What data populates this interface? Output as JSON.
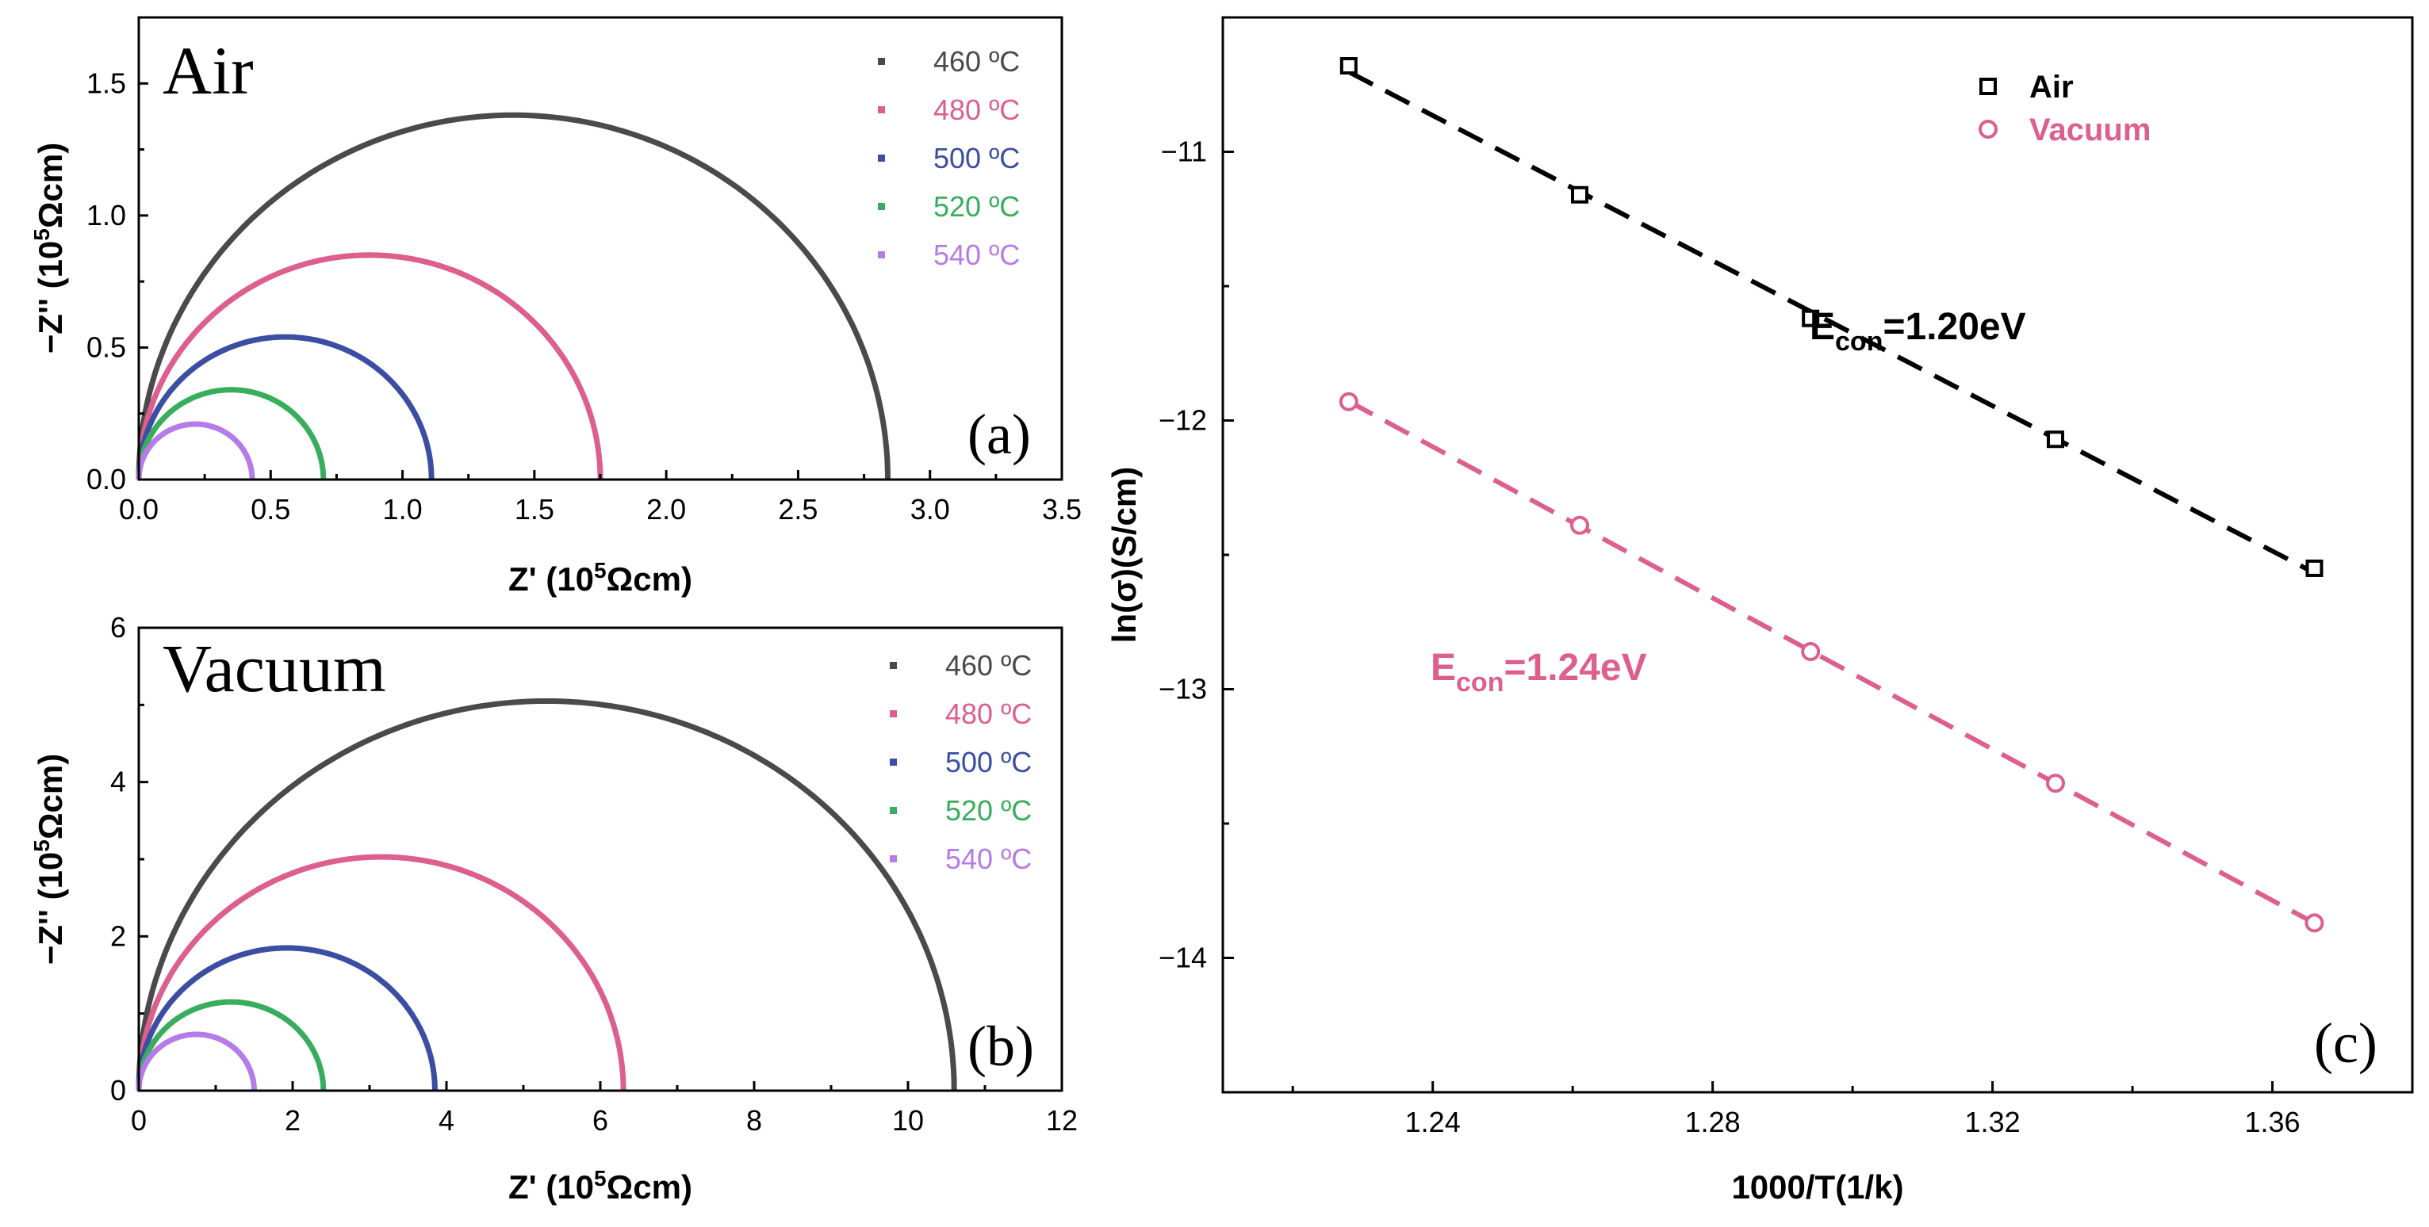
{
  "colors": {
    "460": "#4a4a4a",
    "480": "#dc5f8e",
    "500": "#3b4ea3",
    "520": "#39ad5e",
    "540": "#b57be8",
    "air": "#000000",
    "vacuum": "#dc5f8e"
  },
  "chart_data": [
    {
      "id": "a",
      "type": "scatter",
      "panel_label": "(a)",
      "condition_label": "Air",
      "xlabel": "Z' (10",
      "xlabel_sup": "5",
      "xlabel_unit": "Ωcm)",
      "ylabel": "−Z'' (10",
      "ylabel_sup": "5",
      "ylabel_unit": "Ωcm)",
      "xlim": [
        0,
        3.5
      ],
      "ylim": [
        0,
        1.75
      ],
      "xticks": [
        "0.0",
        "0.5",
        "1.0",
        "1.5",
        "2.0",
        "2.5",
        "3.0",
        "3.5"
      ],
      "yticks": [
        "0.0",
        "0.5",
        "1.0",
        "1.5"
      ],
      "legend_position": "top-right",
      "series": [
        {
          "name": "460 ºC",
          "key": "460",
          "r_end": 2.84,
          "peak": 1.38
        },
        {
          "name": "480 ºC",
          "key": "480",
          "r_end": 1.75,
          "peak": 0.85
        },
        {
          "name": "500 ºC",
          "key": "500",
          "r_end": 1.11,
          "peak": 0.54
        },
        {
          "name": "520 ºC",
          "key": "520",
          "r_end": 0.7,
          "peak": 0.34
        },
        {
          "name": "540 ºC",
          "key": "540",
          "r_end": 0.43,
          "peak": 0.21
        }
      ]
    },
    {
      "id": "b",
      "type": "scatter",
      "panel_label": "(b)",
      "condition_label": "Vacuum",
      "xlabel": "Z' (10",
      "xlabel_sup": "5",
      "xlabel_unit": "Ωcm)",
      "ylabel": "−Z'' (10",
      "ylabel_sup": "5",
      "ylabel_unit": "Ωcm)",
      "xlim": [
        0,
        12
      ],
      "ylim": [
        0,
        6
      ],
      "xticks": [
        "0",
        "2",
        "4",
        "6",
        "8",
        "10",
        "12"
      ],
      "yticks": [
        "0",
        "2",
        "4",
        "6"
      ],
      "legend_position": "top-right",
      "series": [
        {
          "name": "460 ºC",
          "key": "460",
          "r_end": 10.6,
          "peak": 5.05
        },
        {
          "name": "480 ºC",
          "key": "480",
          "r_end": 6.3,
          "peak": 3.03
        },
        {
          "name": "500 ºC",
          "key": "500",
          "r_end": 3.85,
          "peak": 1.85
        },
        {
          "name": "520 ºC",
          "key": "520",
          "r_end": 2.4,
          "peak": 1.15
        },
        {
          "name": "540 ºC",
          "key": "540",
          "r_end": 1.5,
          "peak": 0.73
        }
      ]
    },
    {
      "id": "c",
      "type": "scatter",
      "panel_label": "(c)",
      "xlabel": "1000/T(1/k)",
      "ylabel": "ln(σ)(S/cm)",
      "xlim": [
        1.21,
        1.38
      ],
      "ylim": [
        -14.5,
        -10.5
      ],
      "xticks": [
        "1.24",
        "1.28",
        "1.32",
        "1.36"
      ],
      "yticks": [
        "-11",
        "-12",
        "-13",
        "-14"
      ],
      "legend_position": "top-right",
      "series": [
        {
          "name": "Air",
          "key": "air",
          "marker": "square",
          "x": [
            1.228,
            1.261,
            1.294,
            1.329,
            1.366
          ],
          "y": [
            -10.68,
            -11.16,
            -11.62,
            -12.07,
            -12.55
          ],
          "annotation": "E",
          "annotation_sub": "con",
          "annotation_value": "=1.20eV"
        },
        {
          "name": "Vacuum",
          "key": "vacuum",
          "marker": "circle",
          "x": [
            1.228,
            1.261,
            1.294,
            1.329,
            1.366
          ],
          "y": [
            -11.93,
            -12.39,
            -12.86,
            -13.35,
            -13.87
          ],
          "annotation": "E",
          "annotation_sub": "con",
          "annotation_value": "=1.24eV"
        }
      ]
    }
  ]
}
